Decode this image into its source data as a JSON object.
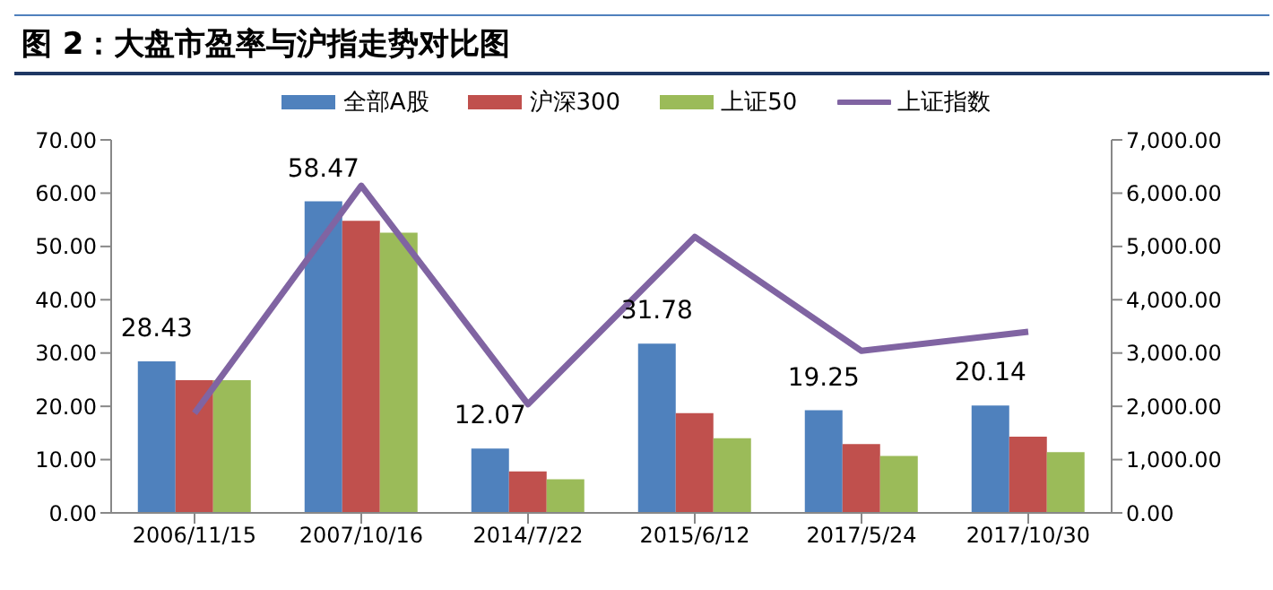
{
  "chart_data": {
    "type": "bar",
    "title": "图 2：大盘市盈率与沪指走势对比图",
    "categories": [
      "2006/11/15",
      "2007/10/16",
      "2014/7/22",
      "2015/6/12",
      "2017/5/24",
      "2017/10/30"
    ],
    "series": [
      {
        "name": "全部A股",
        "color": "#4f81bd",
        "values": [
          28.43,
          58.47,
          12.07,
          31.78,
          19.25,
          20.14
        ],
        "value_labels": [
          "28.43",
          "58.47",
          "12.07",
          "31.78",
          "19.25",
          "20.14"
        ]
      },
      {
        "name": "沪深300",
        "color": "#c0504d",
        "values": [
          24.9,
          54.8,
          7.8,
          18.7,
          12.9,
          14.3
        ]
      },
      {
        "name": "上证50",
        "color": "#9bbb59",
        "values": [
          24.9,
          52.6,
          6.3,
          14.0,
          10.7,
          11.4
        ]
      },
      {
        "name": "上证指数",
        "type": "line",
        "axis": "y2",
        "color": "#8064a2",
        "values": [
          1870,
          6140,
          2040,
          5180,
          3040,
          3400
        ]
      }
    ],
    "ylim": [
      0,
      70
    ],
    "yticks": [
      {
        "value": 0,
        "label": "0.00"
      },
      {
        "value": 10,
        "label": "10.00"
      },
      {
        "value": 20,
        "label": "20.00"
      },
      {
        "value": 30,
        "label": "30.00"
      },
      {
        "value": 40,
        "label": "40.00"
      },
      {
        "value": 50,
        "label": "50.00"
      },
      {
        "value": 60,
        "label": "60.00"
      },
      {
        "value": 70,
        "label": "70.00"
      }
    ],
    "y2lim": [
      0,
      7000
    ],
    "y2ticks": [
      {
        "value": 0,
        "label": "0.00"
      },
      {
        "value": 1000,
        "label": "1,000.00"
      },
      {
        "value": 2000,
        "label": "2,000.00"
      },
      {
        "value": 3000,
        "label": "3,000.00"
      },
      {
        "value": 4000,
        "label": "4,000.00"
      },
      {
        "value": 5000,
        "label": "5,000.00"
      },
      {
        "value": 6000,
        "label": "6,000.00"
      },
      {
        "value": 7000,
        "label": "7,000.00"
      }
    ],
    "grid": false,
    "legend": "top",
    "marker": "none"
  }
}
